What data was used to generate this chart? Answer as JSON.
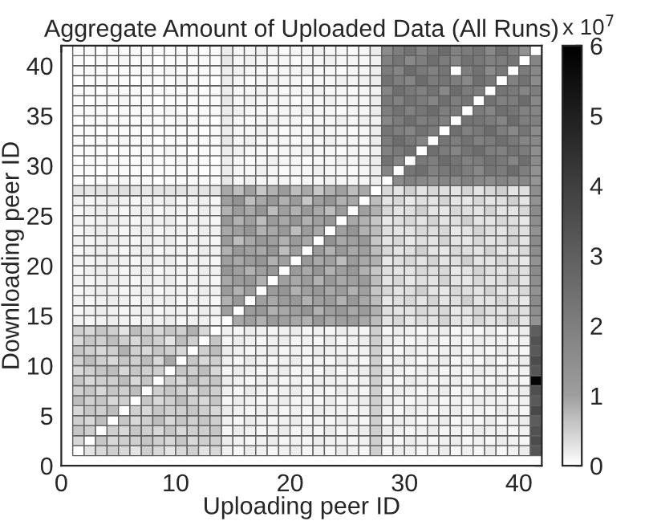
{
  "chart_data": {
    "type": "heatmap",
    "title": "Aggregate Amount of Uploaded Data (All Runs)",
    "xlabel": "Uploading peer ID",
    "ylabel": "Downloading peer ID",
    "x": [
      1.5,
      2.5,
      3.5,
      4.5,
      5.5,
      6.5,
      7.5,
      8.5,
      9.5,
      10.5,
      11.5,
      12.5,
      13.5,
      14.5,
      15.5,
      16.5,
      17.5,
      18.5,
      19.5,
      20.5,
      21.5,
      22.5,
      23.5,
      24.5,
      25.5,
      26.5,
      27.5,
      28.5,
      29.5,
      30.5,
      31.5,
      32.5,
      33.5,
      34.5,
      35.5,
      36.5,
      37.5,
      38.5,
      39.5,
      40.5,
      41.5
    ],
    "y": [
      41.5,
      40.5,
      39.5,
      38.5,
      37.5,
      36.5,
      35.5,
      34.5,
      33.5,
      32.5,
      31.5,
      30.5,
      29.5,
      28.5,
      27.5,
      26.5,
      25.5,
      24.5,
      23.5,
      22.5,
      21.5,
      20.5,
      19.5,
      18.5,
      17.5,
      16.5,
      15.5,
      14.5,
      13.5,
      12.5,
      11.5,
      10.5,
      9.5,
      8.5,
      7.5,
      6.5,
      5.5,
      4.5,
      3.5,
      2.5,
      1.5
    ],
    "xlim": [
      0,
      42
    ],
    "ylim": [
      0,
      42
    ],
    "xticks": [
      0,
      10,
      20,
      30,
      40
    ],
    "yticks": [
      0,
      5,
      10,
      15,
      20,
      25,
      30,
      35,
      40
    ],
    "clim": [
      0,
      6
    ],
    "cticks": [
      0,
      1,
      2,
      3,
      4,
      5,
      6
    ],
    "annotations": [
      "x 10$^{7}$"
    ],
    "grid": false,
    "legend": false,
    "cells": [
      [
        0.05,
        0.05,
        0,
        0.05,
        0.05,
        0.05,
        0,
        0.05,
        0.05,
        0.05,
        0.05,
        0,
        0.05,
        0.2,
        0.1,
        0.1,
        0.15,
        0.1,
        0.05,
        0.1,
        0.1,
        0.15,
        0.1,
        0.1,
        0.05,
        0.1,
        0.2,
        1.6,
        2.0,
        2.4,
        1.8,
        2.2,
        2.6,
        1.9,
        2.1,
        2.3,
        1.7,
        2.5,
        2.0,
        1.4,
        0
      ],
      [
        0.05,
        0,
        0.05,
        0.05,
        0.1,
        0.05,
        0.05,
        0,
        0.05,
        0.05,
        0.05,
        0.05,
        0.05,
        0.25,
        0.1,
        0.15,
        0.1,
        0.1,
        0.1,
        0.05,
        0.1,
        0.1,
        0.15,
        0.1,
        0.1,
        0.1,
        0.15,
        1.9,
        2.3,
        1.7,
        2.0,
        2.5,
        2.1,
        1.8,
        2.4,
        2.2,
        1.9,
        2.0,
        2.3,
        0,
        1.8
      ],
      [
        0.05,
        0.05,
        0.05,
        0,
        0.05,
        0.05,
        0.05,
        0.05,
        0.1,
        0.05,
        0,
        0.05,
        0.05,
        0.2,
        0.15,
        0.1,
        0.1,
        0.05,
        0.1,
        0.1,
        0.15,
        0.1,
        0.1,
        0.05,
        0.1,
        0.1,
        0.2,
        2.1,
        1.8,
        2.6,
        2.2,
        1.9,
        2.3,
        0,
        2.0,
        2.4,
        1.6,
        2.2,
        0,
        2.1,
        1.7
      ],
      [
        0,
        0.05,
        0.05,
        0.05,
        0.05,
        0,
        0.05,
        0.05,
        0.05,
        0.1,
        0.05,
        0.05,
        0,
        0.2,
        0.1,
        0.05,
        0.1,
        0.15,
        0.1,
        0.1,
        0.05,
        0.1,
        0.1,
        0.15,
        0.1,
        0.15,
        0.2,
        2.4,
        2.0,
        1.8,
        2.6,
        2.1,
        2.3,
        2.0,
        1.7,
        2.5,
        2.2,
        0,
        1.9,
        2.4,
        1.6
      ],
      [
        0.05,
        0.05,
        0,
        0.05,
        0.05,
        0.05,
        0,
        0.05,
        0.05,
        0.05,
        0.05,
        0,
        0.05,
        0.2,
        0.1,
        0.1,
        0.15,
        0.1,
        0.05,
        0.1,
        0.1,
        0.15,
        0.1,
        0.1,
        0.05,
        0.1,
        0.15,
        1.8,
        2.5,
        2.2,
        1.9,
        2.4,
        1.7,
        2.6,
        2.1,
        2.0,
        0,
        2.3,
        2.2,
        1.8,
        2.0
      ],
      [
        0.05,
        0,
        0.05,
        0.05,
        0.1,
        0.05,
        0.05,
        0,
        0.05,
        0.05,
        0.05,
        0.05,
        0.05,
        0.25,
        0.1,
        0.15,
        0.1,
        0.1,
        0.1,
        0.05,
        0.1,
        0.1,
        0.15,
        0.1,
        0.1,
        0.1,
        0.2,
        2.2,
        1.9,
        2.4,
        2.1,
        1.8,
        2.5,
        2.0,
        2.3,
        0,
        2.4,
        1.9,
        2.1,
        2.6,
        1.7
      ],
      [
        0.05,
        0.05,
        0.05,
        0,
        0.05,
        0.05,
        0.05,
        0.05,
        0.1,
        0.05,
        0,
        0.05,
        0.05,
        0.2,
        0.15,
        0.1,
        0.1,
        0.05,
        0.1,
        0.1,
        0.15,
        0.1,
        0.1,
        0.05,
        0.1,
        0.1,
        0.2,
        2.0,
        2.4,
        1.9,
        2.3,
        2.6,
        2.0,
        2.2,
        0,
        2.1,
        1.8,
        2.5,
        2.3,
        1.9,
        1.8
      ],
      [
        0,
        0.05,
        0.05,
        0.05,
        0.05,
        0,
        0.05,
        0.05,
        0.05,
        0.1,
        0.05,
        0.05,
        0,
        0.2,
        0.1,
        0.05,
        0.1,
        0.15,
        0.1,
        0.1,
        0.05,
        0.1,
        0.1,
        0.15,
        0.1,
        0.15,
        0.15,
        1.7,
        2.1,
        2.5,
        2.0,
        2.2,
        1.9,
        0,
        2.4,
        2.3,
        2.1,
        1.8,
        2.6,
        2.0,
        1.9
      ],
      [
        0.05,
        0.05,
        0,
        0.05,
        0.05,
        0.05,
        0,
        0.05,
        0.05,
        0.05,
        0.05,
        0,
        0.05,
        0.2,
        0.1,
        0.1,
        0.15,
        0.1,
        0.05,
        0.1,
        0.1,
        0.15,
        0.1,
        0.1,
        0.05,
        0.1,
        0.2,
        2.3,
        2.0,
        1.8,
        2.4,
        2.1,
        0,
        2.5,
        1.9,
        2.2,
        2.6,
        2.0,
        1.7,
        2.3,
        1.6
      ],
      [
        0.05,
        0,
        0.05,
        0.05,
        0.1,
        0.05,
        0.05,
        0,
        0.05,
        0.05,
        0.05,
        0.05,
        0.05,
        0.25,
        0.1,
        0.15,
        0.1,
        0.1,
        0.1,
        0.05,
        0.1,
        0.1,
        0.15,
        0.1,
        0.1,
        0.1,
        0.2,
        2.1,
        2.6,
        2.2,
        1.8,
        0,
        2.3,
        2.0,
        2.4,
        1.9,
        2.1,
        2.5,
        2.2,
        1.8,
        1.7
      ],
      [
        0.05,
        0.05,
        0.05,
        0,
        0.05,
        0.05,
        0.05,
        0.05,
        0.1,
        0.05,
        0,
        0.05,
        0.05,
        0.2,
        0.15,
        0.1,
        0.1,
        0.05,
        0.1,
        0.1,
        0.15,
        0.1,
        0.1,
        0.05,
        0.1,
        0.1,
        0.15,
        1.9,
        2.2,
        2.4,
        0,
        2.5,
        2.1,
        1.8,
        2.3,
        2.6,
        2.0,
        1.9,
        2.4,
        2.1,
        1.5
      ],
      [
        0,
        0.05,
        0.05,
        0.05,
        0.05,
        0,
        0.05,
        0.05,
        0.05,
        0.1,
        0.05,
        0.05,
        0,
        0.2,
        0.1,
        0.05,
        0.1,
        0.15,
        0.1,
        0.1,
        0.05,
        0.1,
        0.1,
        0.15,
        0.1,
        0.15,
        0.2,
        2.4,
        1.8,
        0,
        2.2,
        2.0,
        2.6,
        2.3,
        1.9,
        2.1,
        2.4,
        2.2,
        1.8,
        2.5,
        1.6
      ],
      [
        0.05,
        0.05,
        0,
        0.05,
        0.05,
        0.05,
        0,
        0.05,
        0.05,
        0.05,
        0.05,
        0,
        0.05,
        0.2,
        0.1,
        0.1,
        0.15,
        0.1,
        0.05,
        0.1,
        0.1,
        0.15,
        0.1,
        0.1,
        0.05,
        0.1,
        0.2,
        1.8,
        0,
        2.3,
        2.5,
        1.9,
        2.2,
        2.4,
        2.0,
        1.7,
        2.3,
        2.1,
        2.6,
        2.0,
        1.4
      ],
      [
        0.05,
        0,
        0.05,
        0.05,
        0.1,
        0.05,
        0.05,
        0,
        0.05,
        0.05,
        0.05,
        0.05,
        0.05,
        0.25,
        0.1,
        0.15,
        0.1,
        0.1,
        0.1,
        0.05,
        0.1,
        0.1,
        0.15,
        0.1,
        0.1,
        0.1,
        0.2,
        0,
        1.6,
        1.9,
        1.7,
        1.5,
        1.8,
        1.6,
        1.9,
        1.7,
        1.5,
        1.8,
        1.6,
        1.7,
        1.3
      ],
      [
        0.3,
        0.25,
        0.3,
        0.3,
        0.35,
        0.3,
        0.25,
        0.3,
        0.3,
        0.3,
        0.25,
        0.3,
        0.3,
        0.9,
        0.7,
        1.0,
        0.6,
        0.8,
        1.1,
        0.7,
        0.9,
        0.6,
        0.8,
        1.0,
        0.7,
        0.9,
        0,
        0.4,
        0.3,
        0.5,
        0.3,
        0.4,
        0.35,
        0.3,
        0.45,
        0.3,
        0.4,
        0.5,
        0.3,
        0.35,
        1.5
      ],
      [
        0.15,
        0.1,
        0.15,
        0.2,
        0.15,
        0.1,
        0.15,
        0.15,
        0.2,
        0.1,
        0.15,
        0.15,
        0.1,
        1.0,
        1.4,
        0.7,
        0.9,
        1.2,
        0.8,
        1.1,
        0.6,
        1.0,
        1.3,
        0.8,
        0.9,
        0,
        0.7,
        0.3,
        0.4,
        0.25,
        0.35,
        0.3,
        0.45,
        0.3,
        0.25,
        0.4,
        0.3,
        0.35,
        0.5,
        0.3,
        1.4
      ],
      [
        0.1,
        0.15,
        0.2,
        0.15,
        0.1,
        0.15,
        0.2,
        0.1,
        0.15,
        0.15,
        0.1,
        0.2,
        0.15,
        0.8,
        1.1,
        0.9,
        1.3,
        0.7,
        1.0,
        0.8,
        1.2,
        0.9,
        0.7,
        1.1,
        0,
        1.0,
        0.8,
        0.4,
        0.3,
        0.35,
        0.5,
        0.3,
        0.25,
        0.4,
        0.35,
        0.3,
        0.45,
        0.3,
        0.3,
        0.4,
        1.6
      ],
      [
        0.15,
        0.1,
        0.15,
        0.2,
        0.15,
        0.1,
        0.15,
        0.15,
        0.2,
        0.1,
        0.15,
        0.15,
        0.1,
        1.2,
        0.8,
        1.0,
        0.7,
        1.1,
        0.9,
        1.3,
        0.8,
        1.0,
        1.2,
        0,
        0.9,
        0.8,
        0.6,
        0.25,
        0.35,
        0.4,
        0.3,
        0.45,
        0.3,
        0.35,
        0.5,
        0.3,
        0.3,
        0.4,
        0.35,
        0.25,
        1.5
      ],
      [
        0.1,
        0.15,
        0.2,
        0.15,
        0.1,
        0.15,
        0.2,
        0.1,
        0.15,
        0.15,
        0.1,
        0.2,
        0.15,
        0.9,
        1.0,
        1.3,
        0.8,
        0.9,
        1.2,
        0.7,
        1.1,
        0.9,
        0,
        1.0,
        1.3,
        0.8,
        0.7,
        0.35,
        0.3,
        0.3,
        0.4,
        0.35,
        0.4,
        0.25,
        0.3,
        0.45,
        0.35,
        0.3,
        0.4,
        0.35,
        1.4
      ],
      [
        0.15,
        0.1,
        0.15,
        0.2,
        0.15,
        0.1,
        0.15,
        0.15,
        0.2,
        0.1,
        0.15,
        0.15,
        0.1,
        1.1,
        0.7,
        0.9,
        1.2,
        1.0,
        0.8,
        1.1,
        0.9,
        0,
        1.4,
        0.9,
        1.0,
        1.2,
        0.6,
        0.3,
        0.4,
        0.25,
        0.35,
        0.3,
        0.45,
        0.3,
        0.25,
        0.4,
        0.3,
        0.35,
        0.5,
        0.3,
        1.6
      ],
      [
        0.1,
        0.15,
        0.2,
        0.15,
        0.1,
        0.15,
        0.2,
        0.1,
        0.15,
        0.15,
        0.1,
        0.2,
        0.15,
        0.8,
        1.2,
        1.0,
        0.9,
        1.3,
        0.7,
        1.0,
        0,
        1.1,
        0.8,
        1.2,
        0.9,
        1.0,
        0.7,
        0.4,
        0.3,
        0.35,
        0.5,
        0.3,
        0.25,
        0.4,
        0.35,
        0.3,
        0.45,
        0.3,
        0.3,
        0.4,
        1.5
      ],
      [
        0.15,
        0.1,
        0.15,
        0.2,
        0.15,
        0.1,
        0.15,
        0.15,
        0.2,
        0.1,
        0.15,
        0.15,
        0.1,
        1.0,
        0.9,
        1.1,
        1.3,
        0.8,
        1.0,
        0,
        1.2,
        0.9,
        1.0,
        0.7,
        1.1,
        0.9,
        0.8,
        0.25,
        0.35,
        0.4,
        0.3,
        0.45,
        0.3,
        0.35,
        0.5,
        0.3,
        0.3,
        0.4,
        0.35,
        0.25,
        1.4
      ],
      [
        0.1,
        0.15,
        0.2,
        0.15,
        0.1,
        0.15,
        0.2,
        0.1,
        0.15,
        0.15,
        0.1,
        0.2,
        0.15,
        1.3,
        1.0,
        0.8,
        1.0,
        1.2,
        0,
        1.1,
        0.9,
        1.3,
        0.8,
        1.0,
        1.2,
        0.8,
        0.6,
        0.35,
        0.3,
        0.3,
        0.4,
        0.35,
        0.4,
        0.25,
        0.3,
        0.45,
        0.35,
        0.3,
        0.4,
        0.35,
        1.6
      ],
      [
        0.15,
        0.1,
        0.15,
        0.2,
        0.15,
        0.1,
        0.15,
        0.15,
        0.2,
        0.1,
        0.15,
        0.15,
        0.1,
        0.9,
        1.1,
        1.2,
        0.8,
        0,
        1.0,
        0.9,
        1.1,
        0.8,
        1.2,
        0.9,
        1.0,
        1.1,
        0.7,
        0.3,
        0.4,
        0.25,
        0.35,
        0.3,
        0.45,
        0.3,
        0.25,
        0.4,
        0.3,
        0.35,
        0.5,
        0.3,
        1.5
      ],
      [
        0.1,
        0.15,
        0.2,
        0.15,
        0.1,
        0.15,
        0.2,
        0.1,
        0.15,
        0.15,
        0.1,
        0.2,
        0.15,
        1.1,
        0.8,
        1.0,
        0,
        1.1,
        1.3,
        0.8,
        1.0,
        1.2,
        0.9,
        1.1,
        0.8,
        1.0,
        0.6,
        0.4,
        0.3,
        0.35,
        0.5,
        0.3,
        0.25,
        0.4,
        0.35,
        0.3,
        0.45,
        0.3,
        0.3,
        0.4,
        1.4
      ],
      [
        0.15,
        0.1,
        0.15,
        0.2,
        0.15,
        0.1,
        0.15,
        0.15,
        0.2,
        0.1,
        0.15,
        0.15,
        0.1,
        0.8,
        1.2,
        0,
        1.0,
        0.9,
        1.1,
        1.2,
        0.8,
        1.0,
        1.1,
        0.8,
        1.2,
        0.9,
        0.7,
        0.25,
        0.35,
        0.4,
        0.3,
        0.45,
        0.3,
        0.35,
        0.5,
        0.3,
        0.3,
        0.4,
        0.35,
        0.25,
        1.6
      ],
      [
        0.1,
        0.15,
        0.2,
        0.15,
        0.1,
        0.15,
        0.2,
        0.1,
        0.15,
        0.15,
        0.1,
        0.2,
        0.15,
        1.0,
        0,
        1.1,
        1.2,
        0.8,
        0.9,
        1.0,
        1.3,
        0.8,
        1.0,
        1.2,
        0.9,
        1.1,
        0.8,
        0.35,
        0.3,
        0.3,
        0.4,
        0.35,
        0.4,
        0.25,
        0.3,
        0.45,
        0.35,
        0.3,
        0.4,
        0.35,
        1.5
      ],
      [
        0.15,
        0.1,
        0.15,
        0.2,
        0.15,
        0.1,
        0.15,
        0.15,
        0.2,
        0.1,
        0.15,
        0.15,
        0.1,
        0,
        0.9,
        1.0,
        0.8,
        1.1,
        1.0,
        0.9,
        0.8,
        1.2,
        0.9,
        1.0,
        1.1,
        0.9,
        0.7,
        0.3,
        0.4,
        0.25,
        0.35,
        0.3,
        0.45,
        0.3,
        0.25,
        0.4,
        0.3,
        0.35,
        0.5,
        0.3,
        1.4
      ],
      [
        0.5,
        0.4,
        0.6,
        0.5,
        0.3,
        0.7,
        0.5,
        0.4,
        0.6,
        0.5,
        0.8,
        0.4,
        0,
        0.15,
        0.1,
        0.2,
        0.15,
        0.1,
        0.15,
        0.2,
        0.1,
        0.15,
        0.1,
        0.2,
        0.15,
        0.1,
        0.5,
        0.1,
        0.2,
        0.15,
        0.1,
        0.15,
        0.2,
        0.1,
        0.15,
        0.1,
        0.2,
        0.1,
        0.15,
        0.2,
        3.0
      ],
      [
        0.4,
        0.6,
        0.5,
        0.7,
        0.5,
        0.4,
        0.6,
        0.5,
        0.3,
        0.7,
        0.5,
        0,
        0.6,
        0.1,
        0.2,
        0.15,
        0.1,
        0.15,
        0.2,
        0.1,
        0.15,
        0.1,
        0.2,
        0.1,
        0.15,
        0.2,
        0.5,
        0.2,
        0.15,
        0.1,
        0.15,
        0.2,
        0.1,
        0.15,
        0.1,
        0.2,
        0.15,
        0.15,
        0.1,
        0.15,
        3.4
      ],
      [
        0.6,
        0.5,
        0.4,
        0.5,
        0.8,
        0.5,
        0.4,
        0.6,
        0.5,
        0.4,
        0,
        0.5,
        0.7,
        0.2,
        0.15,
        0.1,
        0.15,
        0.2,
        0.1,
        0.15,
        0.1,
        0.2,
        0.15,
        0.15,
        0.1,
        0.15,
        0.5,
        0.15,
        0.1,
        0.2,
        0.15,
        0.1,
        0.15,
        0.2,
        0.1,
        0.15,
        0.1,
        0.2,
        0.15,
        0.1,
        3.2
      ],
      [
        0.5,
        0.7,
        0.5,
        0.4,
        0.6,
        0.5,
        0.7,
        0.4,
        0.9,
        0,
        0.6,
        0.4,
        0.5,
        0.15,
        0.1,
        0.2,
        0.15,
        0.1,
        0.15,
        0.2,
        0.1,
        0.15,
        0.1,
        0.2,
        0.15,
        0.1,
        0.5,
        0.1,
        0.2,
        0.15,
        0.1,
        0.15,
        0.2,
        0.1,
        0.15,
        0.1,
        0.2,
        0.1,
        0.15,
        0.2,
        3.6
      ],
      [
        0.4,
        0.5,
        0.6,
        0.7,
        0.4,
        0.6,
        0.5,
        0.5,
        0,
        0.6,
        0.5,
        0.7,
        0.4,
        0.1,
        0.2,
        0.15,
        0.1,
        0.15,
        0.2,
        0.1,
        0.15,
        0.1,
        0.2,
        0.1,
        0.15,
        0.2,
        0.5,
        0.2,
        0.15,
        0.1,
        0.15,
        0.2,
        0.1,
        0.15,
        0.1,
        0.2,
        0.15,
        0.15,
        0.1,
        0.15,
        3.3
      ],
      [
        0.6,
        0.4,
        0.5,
        0.5,
        0.7,
        0.4,
        0.6,
        0,
        0.5,
        0.4,
        0.7,
        0.5,
        0.6,
        0.2,
        0.15,
        0.1,
        0.15,
        0.2,
        0.1,
        0.15,
        0.1,
        0.2,
        0.15,
        0.15,
        0.1,
        0.15,
        0.5,
        0.15,
        0.1,
        0.2,
        0.15,
        0.1,
        0.15,
        0.2,
        0.1,
        0.15,
        0.1,
        0.2,
        0.15,
        0.1,
        5.8
      ],
      [
        0.5,
        0.6,
        0.4,
        0.6,
        0.5,
        0.7,
        0,
        0.5,
        0.6,
        0.5,
        0.4,
        0.6,
        0.5,
        0.15,
        0.1,
        0.2,
        0.15,
        0.1,
        0.15,
        0.2,
        0.1,
        0.15,
        0.1,
        0.2,
        0.15,
        0.1,
        0.5,
        0.1,
        0.2,
        0.15,
        0.1,
        0.15,
        0.2,
        0.1,
        0.15,
        0.1,
        0.2,
        0.1,
        0.15,
        0.2,
        3.5
      ],
      [
        0.7,
        0.5,
        0.6,
        0.4,
        0.5,
        0,
        0.6,
        0.4,
        0.5,
        0.7,
        0.5,
        0.4,
        0.6,
        0.1,
        0.2,
        0.15,
        0.1,
        0.15,
        0.2,
        0.1,
        0.15,
        0.1,
        0.2,
        0.1,
        0.15,
        0.2,
        0.5,
        0.2,
        0.15,
        0.1,
        0.15,
        0.2,
        0.1,
        0.15,
        0.1,
        0.2,
        0.15,
        0.15,
        0.1,
        0.15,
        3.2
      ],
      [
        0.4,
        0.6,
        0.5,
        0.7,
        0,
        0.5,
        0.4,
        0.6,
        0.5,
        0.5,
        0.6,
        0.5,
        0.4,
        0.2,
        0.15,
        0.1,
        0.15,
        0.2,
        0.1,
        0.15,
        0.1,
        0.2,
        0.15,
        0.15,
        0.1,
        0.15,
        0.5,
        0.15,
        0.1,
        0.2,
        0.15,
        0.1,
        0.15,
        0.2,
        0.1,
        0.15,
        0.1,
        0.2,
        0.15,
        0.1,
        3.7
      ],
      [
        0.5,
        0.4,
        0.7,
        0,
        0.6,
        0.4,
        0.5,
        0.7,
        0.4,
        0.6,
        0.5,
        0.6,
        0.5,
        0.15,
        0.1,
        0.2,
        0.15,
        0.1,
        0.15,
        0.2,
        0.1,
        0.15,
        0.1,
        0.2,
        0.15,
        0.1,
        0.5,
        0.1,
        0.2,
        0.15,
        0.1,
        0.15,
        0.2,
        0.1,
        0.15,
        0.1,
        0.2,
        0.1,
        0.15,
        0.2,
        3.1
      ],
      [
        0.6,
        0.5,
        0,
        0.5,
        0.4,
        0.6,
        0.5,
        0.4,
        0.6,
        0.4,
        0.5,
        0.5,
        0.6,
        0.1,
        0.2,
        0.15,
        0.1,
        0.15,
        0.2,
        0.1,
        0.15,
        0.1,
        0.2,
        0.1,
        0.15,
        0.2,
        0.5,
        0.2,
        0.15,
        0.1,
        0.15,
        0.2,
        0.1,
        0.15,
        0.1,
        0.2,
        0.15,
        0.15,
        0.1,
        0.15,
        3.4
      ],
      [
        0.4,
        0,
        0.6,
        0.4,
        0.5,
        0.5,
        0.6,
        0.5,
        0.4,
        0.6,
        0.4,
        0.5,
        0.5,
        0.2,
        0.15,
        0.1,
        0.15,
        0.2,
        0.1,
        0.15,
        0.1,
        0.2,
        0.15,
        0.15,
        0.1,
        0.15,
        0.5,
        0.15,
        0.1,
        0.2,
        0.15,
        0.1,
        0.15,
        0.2,
        0.1,
        0.15,
        0.1,
        0.2,
        0.15,
        0.1,
        3.6
      ],
      [
        0,
        0.3,
        0.4,
        0.5,
        0.4,
        0.3,
        0.5,
        0.4,
        0.3,
        0.4,
        0.5,
        0.3,
        0.4,
        0.15,
        0.1,
        0.2,
        0.15,
        0.1,
        0.15,
        0.2,
        0.1,
        0.15,
        0.1,
        0.2,
        0.15,
        0.1,
        0.5,
        0.1,
        0.2,
        0.15,
        0.1,
        0.15,
        0.2,
        0.1,
        0.15,
        0.1,
        0.2,
        0.1,
        0.15,
        0.2,
        3.3
      ]
    ]
  }
}
